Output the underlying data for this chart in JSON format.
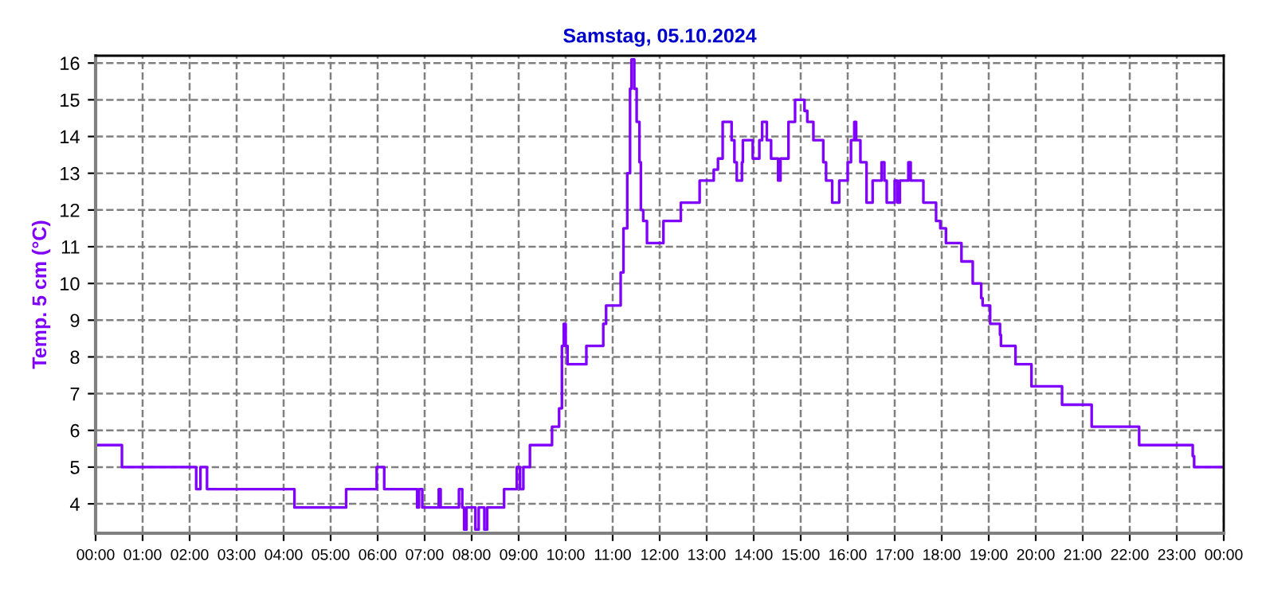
{
  "chart_data": {
    "type": "step",
    "title": "Samstag, 05.10.2024",
    "ylabel": "Temp. 5 cm (°C)",
    "xlim": [
      0,
      24
    ],
    "ylim": [
      3.2,
      16.2
    ],
    "yticks": [
      4,
      5,
      6,
      7,
      8,
      9,
      10,
      11,
      12,
      13,
      14,
      15,
      16
    ],
    "xticks": [
      {
        "value": 0,
        "label": "00:00"
      },
      {
        "value": 1,
        "label": "01:00"
      },
      {
        "value": 2,
        "label": "02:00"
      },
      {
        "value": 3,
        "label": "03:00"
      },
      {
        "value": 4,
        "label": "04:00"
      },
      {
        "value": 5,
        "label": "05:00"
      },
      {
        "value": 6,
        "label": "06:00"
      },
      {
        "value": 7,
        "label": "07:00"
      },
      {
        "value": 8,
        "label": "08:00"
      },
      {
        "value": 9,
        "label": "09:00"
      },
      {
        "value": 10,
        "label": "10:00"
      },
      {
        "value": 11,
        "label": "11:00"
      },
      {
        "value": 12,
        "label": "12:00"
      },
      {
        "value": 13,
        "label": "13:00"
      },
      {
        "value": 14,
        "label": "14:00"
      },
      {
        "value": 15,
        "label": "15:00"
      },
      {
        "value": 16,
        "label": "16:00"
      },
      {
        "value": 17,
        "label": "17:00"
      },
      {
        "value": 18,
        "label": "18:00"
      },
      {
        "value": 19,
        "label": "19:00"
      },
      {
        "value": 20,
        "label": "20:00"
      },
      {
        "value": 21,
        "label": "21:00"
      },
      {
        "value": 22,
        "label": "22:00"
      },
      {
        "value": 23,
        "label": "23:00"
      },
      {
        "value": 24,
        "label": "00:00"
      }
    ],
    "grid": true,
    "line_style": "solid",
    "series": [
      {
        "color": "#8000ff",
        "x": [
          0,
          0.56,
          2.14,
          2.23,
          2.37,
          4.23,
          5.33,
          5.98,
          6.14,
          6.84,
          6.88,
          6.95,
          7.3,
          7.34,
          7.73,
          7.8,
          7.84,
          7.89,
          8.08,
          8.15,
          8.27,
          8.33,
          8.69,
          8.96,
          9.03,
          9.1,
          9.24,
          9.71,
          9.86,
          9.92,
          9.96,
          10.0,
          10.04,
          10.44,
          10.8,
          10.86,
          11.17,
          11.23,
          11.31,
          11.37,
          11.4,
          11.46,
          11.51,
          11.57,
          11.6,
          11.65,
          11.73,
          12.08,
          12.45,
          12.85,
          13.15,
          13.24,
          13.34,
          13.53,
          13.59,
          13.64,
          13.75,
          13.77,
          13.98,
          14.03,
          14.12,
          14.18,
          14.28,
          14.37,
          14.52,
          14.57,
          14.74,
          14.88,
          15.08,
          15.14,
          15.27,
          15.48,
          15.54,
          15.67,
          15.82,
          16.0,
          16.07,
          16.14,
          16.18,
          16.27,
          16.4,
          16.53,
          16.72,
          16.78,
          16.83,
          17.0,
          17.06,
          17.11,
          17.29,
          17.34,
          17.61,
          17.88,
          17.97,
          18.09,
          18.42,
          18.66,
          18.84,
          18.87,
          19.03,
          19.24,
          19.26,
          19.57,
          19.91,
          20.56,
          21.19,
          22.2,
          23.34,
          23.37,
          24
        ],
        "values": [
          5.6,
          5.0,
          4.4,
          5.0,
          4.4,
          3.9,
          4.4,
          5.0,
          4.4,
          3.9,
          4.4,
          3.9,
          4.4,
          3.9,
          4.4,
          3.9,
          3.3,
          3.9,
          3.3,
          3.9,
          3.3,
          3.9,
          4.4,
          5.0,
          4.4,
          5.0,
          5.6,
          6.1,
          6.6,
          8.3,
          8.9,
          8.3,
          7.8,
          8.3,
          8.9,
          9.4,
          10.3,
          11.5,
          13.0,
          15.3,
          16.1,
          15.3,
          14.4,
          13.3,
          12.0,
          11.7,
          11.1,
          11.7,
          12.2,
          12.8,
          13.1,
          13.4,
          14.4,
          13.9,
          13.3,
          12.8,
          13.3,
          13.9,
          13.4,
          13.4,
          13.9,
          14.4,
          13.9,
          13.4,
          12.8,
          13.4,
          14.4,
          15.0,
          14.7,
          14.4,
          13.9,
          13.3,
          12.8,
          12.2,
          12.8,
          13.3,
          13.9,
          14.4,
          13.9,
          13.3,
          12.2,
          12.8,
          13.3,
          12.8,
          12.2,
          12.8,
          12.2,
          12.8,
          13.3,
          12.8,
          12.2,
          11.7,
          11.5,
          11.1,
          10.6,
          10.0,
          9.6,
          9.4,
          8.9,
          8.6,
          8.3,
          7.8,
          7.2,
          6.7,
          6.1,
          5.6,
          5.3,
          5.0,
          5.0
        ]
      }
    ]
  }
}
